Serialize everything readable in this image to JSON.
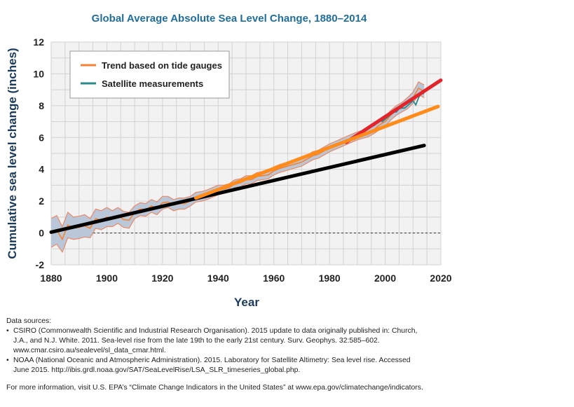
{
  "chart_data": {
    "type": "line",
    "title": "Global Average Absolute Sea Level Change, 1880–2014",
    "xlabel": "Year",
    "ylabel": "Cumulative sea level change (inches)",
    "xlim": [
      1880,
      2020
    ],
    "ylim": [
      -2,
      12
    ],
    "xticks": [
      1880,
      1900,
      1920,
      1940,
      1960,
      1980,
      2000,
      2020
    ],
    "yticks": [
      -2,
      0,
      2,
      4,
      6,
      8,
      10,
      12
    ],
    "grid": true,
    "legend_position": "top-left",
    "legend": [
      "Trend based on tide gauges",
      "Satellite measurements"
    ],
    "colors": {
      "tide": "#f58231",
      "tide_band": "#b9c7d8",
      "band_edge": "#e88a6a",
      "satellite": "#2a8a8a",
      "black_line": "#000000",
      "red_line": "#e3242b",
      "orange_fit": "#ff8c1a"
    },
    "series": [
      {
        "name": "Trend based on tide gauges",
        "x": [
          1880,
          1882,
          1884,
          1886,
          1888,
          1890,
          1892,
          1894,
          1896,
          1898,
          1900,
          1902,
          1904,
          1906,
          1908,
          1910,
          1912,
          1914,
          1916,
          1918,
          1920,
          1922,
          1924,
          1926,
          1928,
          1930,
          1932,
          1934,
          1936,
          1938,
          1940,
          1942,
          1944,
          1946,
          1948,
          1950,
          1952,
          1954,
          1956,
          1958,
          1960,
          1962,
          1964,
          1966,
          1968,
          1970,
          1972,
          1974,
          1976,
          1978,
          1980,
          1982,
          1984,
          1986,
          1988,
          1990,
          1992,
          1994,
          1996,
          1998,
          2000,
          2002,
          2004,
          2006,
          2008,
          2010,
          2012,
          2014
        ],
        "y": [
          0.0,
          0.2,
          -0.4,
          0.5,
          0.3,
          0.35,
          0.45,
          0.3,
          0.9,
          0.8,
          1.0,
          0.9,
          1.1,
          0.85,
          0.8,
          1.3,
          1.5,
          1.45,
          1.7,
          1.55,
          1.9,
          1.95,
          1.75,
          1.85,
          1.85,
          2.0,
          2.25,
          2.3,
          2.4,
          2.55,
          2.7,
          2.75,
          2.85,
          3.1,
          3.15,
          3.35,
          3.35,
          3.55,
          3.6,
          3.65,
          3.9,
          4.05,
          4.15,
          4.25,
          4.35,
          4.45,
          4.65,
          4.85,
          4.95,
          5.15,
          5.35,
          5.5,
          5.65,
          5.8,
          5.95,
          6.1,
          6.2,
          6.3,
          6.5,
          6.8,
          7.0,
          7.4,
          7.7,
          7.9,
          8.15,
          8.5,
          9.1,
          8.9
        ],
        "uncertainty": [
          0.9,
          0.9,
          0.8,
          0.8,
          0.7,
          0.7,
          0.7,
          0.6,
          0.6,
          0.6,
          0.6,
          0.5,
          0.5,
          0.5,
          0.5,
          0.4,
          0.4,
          0.4,
          0.4,
          0.4,
          0.4,
          0.35,
          0.35,
          0.35,
          0.35,
          0.3,
          0.3,
          0.3,
          0.3,
          0.3,
          0.3,
          0.25,
          0.25,
          0.25,
          0.25,
          0.25,
          0.25,
          0.25,
          0.25,
          0.25,
          0.25,
          0.25,
          0.25,
          0.25,
          0.25,
          0.25,
          0.25,
          0.25,
          0.25,
          0.25,
          0.25,
          0.25,
          0.25,
          0.25,
          0.25,
          0.25,
          0.25,
          0.25,
          0.25,
          0.3,
          0.3,
          0.3,
          0.3,
          0.3,
          0.35,
          0.35,
          0.4,
          0.4
        ]
      },
      {
        "name": "Satellite measurements",
        "x": [
          1993,
          1994,
          1995,
          1996,
          1997,
          1998,
          1999,
          2000,
          2001,
          2002,
          2003,
          2004,
          2005,
          2006,
          2007,
          2008,
          2009,
          2010,
          2011,
          2012,
          2013,
          2014
        ],
        "y": [
          6.5,
          6.6,
          6.7,
          6.75,
          6.9,
          7.1,
          7.0,
          7.15,
          7.3,
          7.45,
          7.6,
          7.6,
          7.8,
          7.85,
          7.85,
          8.0,
          8.15,
          8.3,
          8.05,
          8.5,
          8.8,
          8.75
        ]
      }
    ],
    "trend_lines": [
      {
        "x": [
          1880,
          2014
        ],
        "y": [
          0.05,
          5.5
        ]
      },
      {
        "x": [
          1986,
          2020
        ],
        "y": [
          5.7,
          9.6
        ]
      },
      {
        "x": [
          1932,
          2019
        ],
        "y": [
          2.2,
          7.95
        ]
      }
    ]
  },
  "notes": {
    "sources_heading": "Data sources:",
    "sources": [
      {
        "bullet": "•",
        "lines": [
          "CSIRO (Commonwealth Scientific and Industrial Research Organisation). 2015 update to data originally published in: Church,",
          "J.A., and N.J. White. 2011. Sea-level rise from the late 19th to the early 21st century. Surv. Geophys. 32:585–602.",
          "www.cmar.csiro.au/sealevel/sl_data_cmar.html."
        ]
      },
      {
        "bullet": "•",
        "lines": [
          "NOAA (National Oceanic and Atmospheric Administration). 2015. Laboratory for Satellite Altimetry: Sea level rise. Accessed",
          "June 2015. http://ibis.grdl.noaa.gov/SAT/SeaLevelRise/LSA_SLR_timeseries_global.php."
        ]
      }
    ],
    "more_info": "For more information, visit U.S. EPA’s “Climate Change Indicators in the United States” at www.epa.gov/climatechange/indicators."
  }
}
